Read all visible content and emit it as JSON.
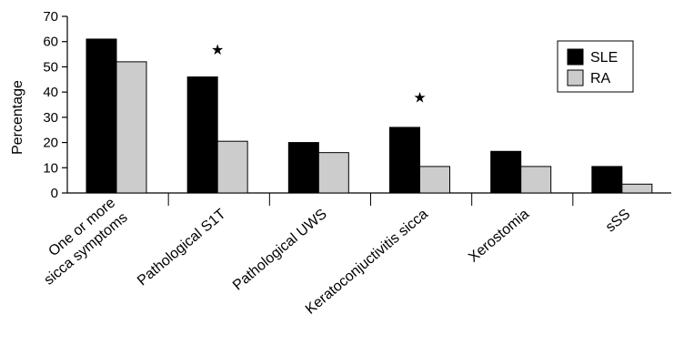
{
  "chart_data": {
    "type": "bar",
    "title": "",
    "xlabel": "",
    "ylabel": "Percentage",
    "ylim": [
      0,
      70
    ],
    "yticks": [
      0,
      10,
      20,
      30,
      40,
      50,
      60,
      70
    ],
    "grid": false,
    "legend_position": "top-right",
    "categories": [
      [
        "One or more",
        "sicca symptoms"
      ],
      [
        "Pathological S1T"
      ],
      [
        "Pathological UWS"
      ],
      [
        "Keratoconjuctivitis sicca"
      ],
      [
        "Xerostomia"
      ],
      [
        "sSS"
      ]
    ],
    "series": [
      {
        "name": "SLE",
        "color": "#000000",
        "values": [
          61,
          46,
          20,
          26,
          16.5,
          10.5
        ]
      },
      {
        "name": "RA",
        "color": "#cccccc",
        "values": [
          52,
          20.5,
          16,
          10.5,
          10.5,
          3.5
        ]
      }
    ],
    "annotations": [
      {
        "text": "★",
        "category_index": 1,
        "value": 57
      },
      {
        "text": "★",
        "category_index": 3,
        "value": 38
      }
    ]
  }
}
